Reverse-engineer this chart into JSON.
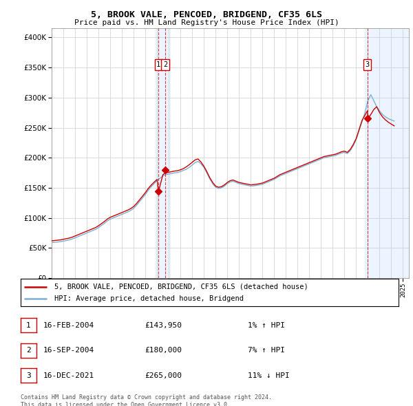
{
  "title": "5, BROOK VALE, PENCOED, BRIDGEND, CF35 6LS",
  "subtitle": "Price paid vs. HM Land Registry's House Price Index (HPI)",
  "ytick_vals": [
    0,
    50000,
    100000,
    150000,
    200000,
    250000,
    300000,
    350000,
    400000
  ],
  "ylim": [
    0,
    415000
  ],
  "xlim_start": 1995.0,
  "xlim_end": 2025.5,
  "legend_line1": "5, BROOK VALE, PENCOED, BRIDGEND, CF35 6LS (detached house)",
  "legend_line2": "HPI: Average price, detached house, Bridgend",
  "transactions": [
    {
      "num": 1,
      "date": "16-FEB-2004",
      "price": "£143,950",
      "hpi": "1% ↑ HPI",
      "year": 2004.125,
      "value": 143950
    },
    {
      "num": 2,
      "date": "16-SEP-2004",
      "price": "£180,000",
      "hpi": "7% ↑ HPI",
      "year": 2004.708,
      "value": 180000
    },
    {
      "num": 3,
      "date": "16-DEC-2021",
      "price": "£265,000",
      "hpi": "11% ↓ HPI",
      "year": 2021.958,
      "value": 265000
    }
  ],
  "footer1": "Contains HM Land Registry data © Crown copyright and database right 2024.",
  "footer2": "This data is licensed under the Open Government Licence v3.0.",
  "hpi_color": "#7bafd4",
  "property_color": "#cc0000",
  "marker_color": "#cc0000",
  "transaction_box_color": "#cc0000",
  "background_color": "#ffffff",
  "plot_bg_color": "#ffffff",
  "grid_color": "#cccccc",
  "shading_color": "#ddeeff",
  "hpi_data_x": [
    1995.0,
    1995.25,
    1995.5,
    1995.75,
    1996.0,
    1996.25,
    1996.5,
    1996.75,
    1997.0,
    1997.25,
    1997.5,
    1997.75,
    1998.0,
    1998.25,
    1998.5,
    1998.75,
    1999.0,
    1999.25,
    1999.5,
    1999.75,
    2000.0,
    2000.25,
    2000.5,
    2000.75,
    2001.0,
    2001.25,
    2001.5,
    2001.75,
    2002.0,
    2002.25,
    2002.5,
    2002.75,
    2003.0,
    2003.25,
    2003.5,
    2003.75,
    2004.0,
    2004.25,
    2004.5,
    2004.75,
    2005.0,
    2005.25,
    2005.5,
    2005.75,
    2006.0,
    2006.25,
    2006.5,
    2006.75,
    2007.0,
    2007.25,
    2007.5,
    2007.75,
    2008.0,
    2008.25,
    2008.5,
    2008.75,
    2009.0,
    2009.25,
    2009.5,
    2009.75,
    2010.0,
    2010.25,
    2010.5,
    2010.75,
    2011.0,
    2011.25,
    2011.5,
    2011.75,
    2012.0,
    2012.25,
    2012.5,
    2012.75,
    2013.0,
    2013.25,
    2013.5,
    2013.75,
    2014.0,
    2014.25,
    2014.5,
    2014.75,
    2015.0,
    2015.25,
    2015.5,
    2015.75,
    2016.0,
    2016.25,
    2016.5,
    2016.75,
    2017.0,
    2017.25,
    2017.5,
    2017.75,
    2018.0,
    2018.25,
    2018.5,
    2018.75,
    2019.0,
    2019.25,
    2019.5,
    2019.75,
    2020.0,
    2020.25,
    2020.5,
    2020.75,
    2021.0,
    2021.25,
    2021.5,
    2021.75,
    2022.0,
    2022.25,
    2022.5,
    2022.75,
    2023.0,
    2023.25,
    2023.5,
    2023.75,
    2024.0,
    2024.25
  ],
  "hpi_data_y": [
    59000,
    59500,
    60000,
    60500,
    61500,
    62500,
    63500,
    65000,
    67000,
    69000,
    71000,
    73000,
    75000,
    77000,
    79000,
    81000,
    84000,
    87500,
    91000,
    95000,
    98000,
    100000,
    102000,
    104000,
    106000,
    108000,
    110000,
    112500,
    116000,
    121000,
    127000,
    133000,
    139000,
    146000,
    152000,
    157000,
    162000,
    166000,
    170000,
    172000,
    173000,
    174000,
    175000,
    175500,
    177000,
    179000,
    181000,
    184000,
    188000,
    192000,
    194000,
    190000,
    184000,
    175000,
    165000,
    157000,
    151000,
    149000,
    150000,
    153000,
    157000,
    160000,
    161000,
    159000,
    157000,
    156000,
    155000,
    154000,
    153000,
    153500,
    154000,
    155000,
    156000,
    158000,
    160000,
    162000,
    164000,
    167000,
    170000,
    172000,
    174000,
    176000,
    178000,
    180000,
    182000,
    184000,
    186000,
    188000,
    190000,
    192000,
    194000,
    196000,
    198000,
    200000,
    201000,
    202000,
    203000,
    204000,
    206000,
    208000,
    209000,
    207000,
    212000,
    220000,
    230000,
    245000,
    260000,
    275000,
    295000,
    305000,
    295000,
    285000,
    278000,
    272000,
    268000,
    265000,
    263000,
    261000
  ],
  "prop_data_x": [
    1995.0,
    1995.25,
    1995.5,
    1995.75,
    1996.0,
    1996.25,
    1996.5,
    1996.75,
    1997.0,
    1997.25,
    1997.5,
    1997.75,
    1998.0,
    1998.25,
    1998.5,
    1998.75,
    1999.0,
    1999.25,
    1999.5,
    1999.75,
    2000.0,
    2000.25,
    2000.5,
    2000.75,
    2001.0,
    2001.25,
    2001.5,
    2001.75,
    2002.0,
    2002.25,
    2002.5,
    2002.75,
    2003.0,
    2003.25,
    2003.5,
    2003.75,
    2004.0,
    2004.125,
    2004.5,
    2004.75,
    2005.0,
    2005.25,
    2005.5,
    2005.75,
    2006.0,
    2006.25,
    2006.5,
    2006.75,
    2007.0,
    2007.25,
    2007.5,
    2007.75,
    2008.0,
    2008.25,
    2008.5,
    2008.75,
    2009.0,
    2009.25,
    2009.5,
    2009.75,
    2010.0,
    2010.25,
    2010.5,
    2010.75,
    2011.0,
    2011.25,
    2011.5,
    2011.75,
    2012.0,
    2012.25,
    2012.5,
    2012.75,
    2013.0,
    2013.25,
    2013.5,
    2013.75,
    2014.0,
    2014.25,
    2014.5,
    2014.75,
    2015.0,
    2015.25,
    2015.5,
    2015.75,
    2016.0,
    2016.25,
    2016.5,
    2016.75,
    2017.0,
    2017.25,
    2017.5,
    2017.75,
    2018.0,
    2018.25,
    2018.5,
    2018.75,
    2019.0,
    2019.25,
    2019.5,
    2019.75,
    2020.0,
    2020.25,
    2020.5,
    2020.75,
    2021.0,
    2021.25,
    2021.5,
    2021.958,
    2022.0,
    2022.25,
    2022.5,
    2022.75,
    2023.0,
    2023.25,
    2023.5,
    2023.75,
    2024.0,
    2024.25
  ],
  "prop_data_y": [
    62000,
    62500,
    63000,
    63500,
    64500,
    65500,
    66500,
    68000,
    70000,
    72000,
    74000,
    76000,
    78000,
    80000,
    82000,
    84000,
    87000,
    90500,
    94000,
    98000,
    101000,
    103000,
    105000,
    107000,
    109000,
    111000,
    113000,
    115500,
    119000,
    124000,
    130000,
    136000,
    142000,
    149000,
    154500,
    159500,
    164000,
    143950,
    172000,
    175000,
    176000,
    177000,
    178000,
    178500,
    180000,
    182000,
    185000,
    188500,
    192500,
    196500,
    198000,
    193000,
    186000,
    177000,
    167000,
    159000,
    153000,
    151000,
    152000,
    155000,
    159000,
    162000,
    163000,
    161000,
    159000,
    158000,
    157000,
    156000,
    155000,
    155500,
    156000,
    157000,
    158000,
    160000,
    162000,
    164000,
    166000,
    169000,
    172000,
    174000,
    176000,
    178000,
    180000,
    182000,
    184000,
    186000,
    188000,
    190000,
    192000,
    194000,
    196000,
    198000,
    200000,
    202000,
    203000,
    204000,
    205000,
    206000,
    208000,
    210000,
    211000,
    209000,
    214000,
    222000,
    232000,
    247000,
    262000,
    278000,
    265000,
    272000,
    280000,
    285000,
    275000,
    268000,
    263000,
    259000,
    256000,
    253000
  ]
}
